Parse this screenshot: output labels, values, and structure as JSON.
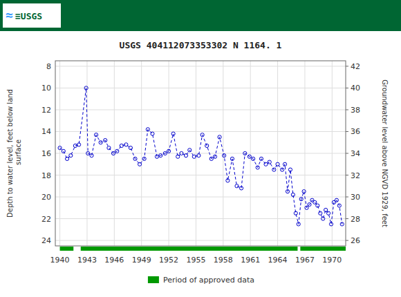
{
  "chart_data": {
    "type": "line",
    "title": "USGS 404112073353302 N  1164. 1",
    "annotations": [
      {
        "text": "≈",
        "color": "#3399ff"
      },
      {
        "text": "≡USGS",
        "color": "#006633"
      }
    ],
    "ylabel": "Depth to water level, feet below land\n surface",
    "y2label": "Groundwater level above NGVD 1929, feet",
    "xlim": [
      1939.5,
      1971.5
    ],
    "xticks": [
      1940,
      1943,
      1946,
      1949,
      1952,
      1955,
      1958,
      1961,
      1964,
      1967,
      1970
    ],
    "ylim": [
      24.5,
      7.5
    ],
    "yticks": [
      8,
      10,
      12,
      14,
      16,
      18,
      20,
      22,
      24
    ],
    "y2lim": [
      25.5,
      42.5
    ],
    "y2ticks": [
      26,
      28,
      30,
      32,
      34,
      36,
      38,
      40,
      42
    ],
    "grid": true,
    "x": [
      1940.0,
      1940.4,
      1940.8,
      1941.2,
      1941.7,
      1942.1,
      1942.9,
      1943.1,
      1943.5,
      1944.0,
      1944.5,
      1945.0,
      1945.4,
      1945.9,
      1946.3,
      1946.8,
      1947.3,
      1947.8,
      1948.3,
      1948.8,
      1949.3,
      1949.7,
      1950.2,
      1950.7,
      1951.1,
      1951.6,
      1952.0,
      1952.5,
      1953.0,
      1953.4,
      1953.9,
      1954.3,
      1954.8,
      1955.3,
      1955.7,
      1956.2,
      1956.7,
      1957.1,
      1957.6,
      1958.1,
      1958.5,
      1959.0,
      1959.5,
      1960.0,
      1960.4,
      1960.9,
      1961.3,
      1961.8,
      1962.2,
      1962.7,
      1963.1,
      1963.6,
      1964.0,
      1964.5,
      1964.8,
      1965.1,
      1965.4,
      1965.7,
      1966.0,
      1966.3,
      1966.6,
      1966.9,
      1967.2,
      1967.5,
      1967.8,
      1968.1,
      1968.4,
      1968.7,
      1969.0,
      1969.3,
      1969.6,
      1969.9,
      1970.2,
      1970.5,
      1970.8,
      1971.1
    ],
    "series": [
      {
        "color": "#0000cc",
        "marker": "circle",
        "line_style": "dashed",
        "values": [
          15.5,
          15.8,
          16.5,
          16.2,
          15.3,
          15.2,
          10.0,
          16.0,
          16.2,
          14.3,
          15.0,
          14.8,
          15.5,
          16.0,
          15.8,
          15.3,
          15.2,
          15.5,
          16.5,
          17.0,
          16.5,
          13.8,
          14.2,
          16.3,
          16.2,
          16.0,
          15.8,
          14.2,
          16.3,
          16.0,
          16.2,
          15.7,
          16.3,
          16.2,
          14.3,
          15.3,
          16.5,
          16.3,
          14.5,
          16.2,
          18.5,
          16.5,
          19.0,
          19.2,
          16.0,
          16.3,
          16.5,
          17.3,
          16.5,
          17.0,
          16.8,
          17.5,
          17.0,
          17.5,
          17.0,
          19.5,
          17.5,
          19.8,
          21.5,
          22.5,
          20.2,
          19.5,
          21.0,
          20.7,
          20.3,
          20.5,
          20.8,
          21.5,
          22.0,
          21.2,
          21.5,
          22.5,
          20.5,
          20.3,
          20.8,
          22.5
        ]
      },
      {
        "name": "Period of approved data",
        "type": "span",
        "color": "#009900",
        "segments": [
          [
            1940.0,
            1941.5
          ],
          [
            1942.3,
            1966.2
          ],
          [
            1966.5,
            1971.5
          ]
        ]
      }
    ]
  }
}
